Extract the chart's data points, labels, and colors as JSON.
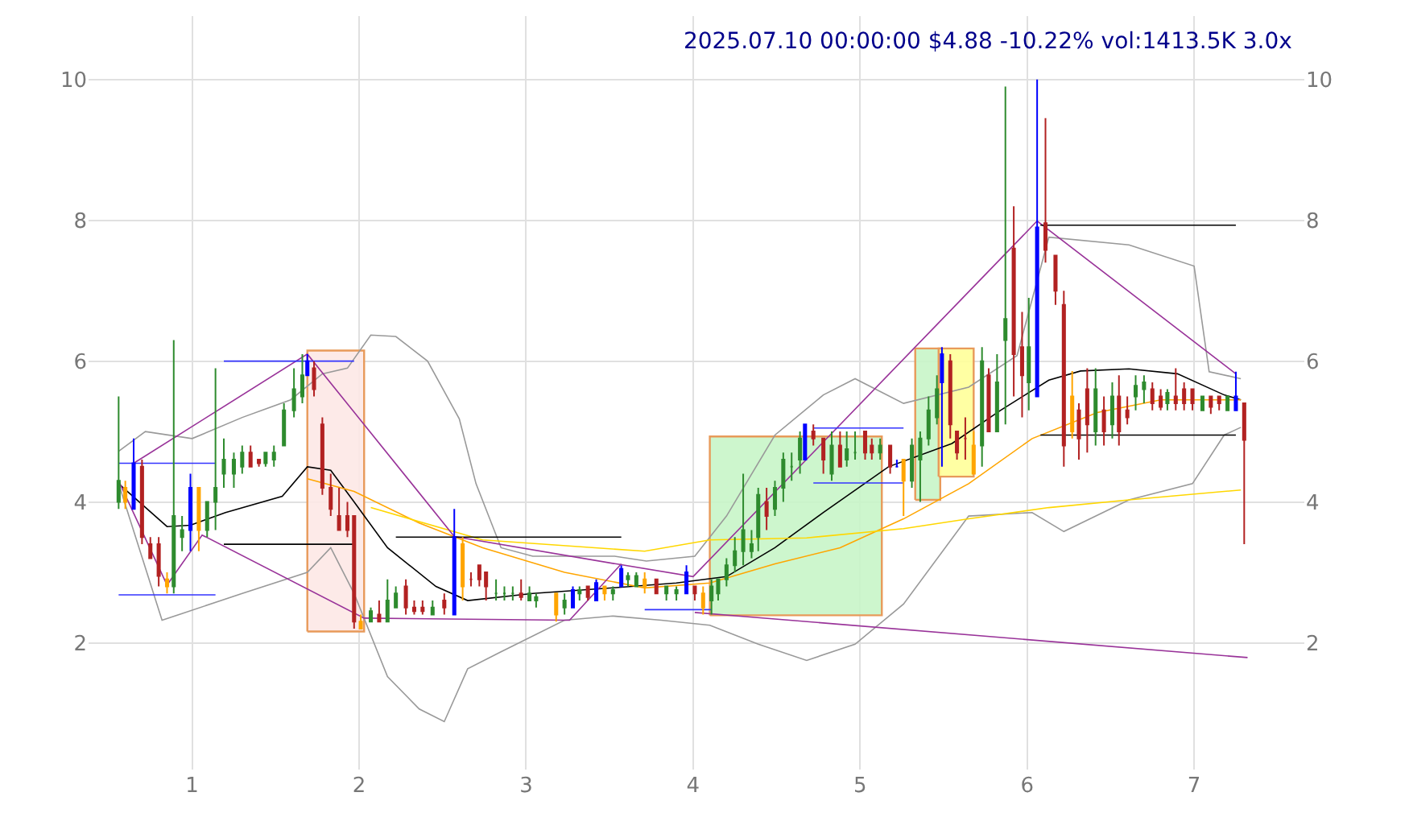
{
  "chart_data": {
    "type": "candlestick",
    "title": "2025.07.10 00:00:00 $4.88 -10.22% vol:1413.5K 3.0x",
    "xlim": [
      0.38,
      7.66
    ],
    "xticks": [
      1,
      2,
      3,
      4,
      5,
      6,
      7
    ],
    "ylim": [
      0.2,
      10.9
    ],
    "yticks": [
      2,
      4,
      6,
      8,
      10
    ],
    "y2lim": [
      0.2,
      10.9
    ],
    "y2ticks": [
      2,
      4,
      6,
      8,
      10
    ],
    "grid": true,
    "series": [
      {
        "type": "area",
        "color": "#fde8e6",
        "x": [
          1.69,
          2.03,
          2.03,
          1.69,
          1.69
        ],
        "values": [
          2.16,
          2.16,
          6.15,
          6.15,
          2.16
        ]
      },
      {
        "type": "area",
        "color": "#c8f5c8",
        "x": [
          4.1,
          5.13,
          5.13,
          4.1,
          4.1
        ],
        "values": [
          2.39,
          2.39,
          4.93,
          4.93,
          2.39
        ]
      },
      {
        "type": "area",
        "color": "#c8f5c8",
        "x": [
          5.33,
          5.48,
          5.48,
          5.33,
          5.33
        ],
        "values": [
          4.03,
          4.03,
          6.18,
          6.18,
          4.03
        ]
      },
      {
        "type": "area",
        "color": "#ffff99",
        "x": [
          5.47,
          5.68,
          5.68,
          5.47,
          5.47
        ],
        "values": [
          4.36,
          4.36,
          6.18,
          6.18,
          4.36
        ]
      },
      {
        "type": "line",
        "color": "#999999",
        "x": [
          0.56,
          0.72,
          1.0,
          1.3,
          1.59,
          1.78,
          1.93,
          2.07,
          2.22,
          2.41,
          2.6,
          2.7,
          2.85,
          3.04,
          3.53,
          3.72,
          4.01,
          4.2,
          4.49,
          4.78,
          4.97,
          5.26,
          5.65,
          5.94,
          6.13,
          6.61,
          7.0,
          7.09,
          7.28
        ],
        "values": [
          4.72,
          5.0,
          4.9,
          5.2,
          5.45,
          5.82,
          5.9,
          6.37,
          6.35,
          6.0,
          5.18,
          4.26,
          3.35,
          3.23,
          3.23,
          3.16,
          3.23,
          3.8,
          4.95,
          5.52,
          5.75,
          5.4,
          5.63,
          6.08,
          7.76,
          7.65,
          7.35,
          5.85,
          5.75
        ]
      },
      {
        "type": "line",
        "color": "#999999",
        "x": [
          0.56,
          0.82,
          1.3,
          1.69,
          1.83,
          1.97,
          2.17,
          2.36,
          2.51,
          2.65,
          2.84,
          3.23,
          3.52,
          3.81,
          4.1,
          4.39,
          4.68,
          4.97,
          5.26,
          5.65,
          6.03,
          6.22,
          6.61,
          6.99,
          7.18,
          7.28
        ],
        "values": [
          4.26,
          2.32,
          2.7,
          3.0,
          3.35,
          2.7,
          1.52,
          1.06,
          0.88,
          1.63,
          1.86,
          2.32,
          2.38,
          2.32,
          2.25,
          1.98,
          1.75,
          1.98,
          2.55,
          3.8,
          3.85,
          3.58,
          4.03,
          4.26,
          4.95,
          5.06
        ]
      },
      {
        "type": "line",
        "color": "#000000",
        "x": [
          0.56,
          0.85,
          0.99,
          1.2,
          1.54,
          1.69,
          1.83,
          1.97,
          2.17,
          2.46,
          2.65,
          3.04,
          3.52,
          3.9,
          4.2,
          4.49,
          4.78,
          5.17,
          5.55,
          5.84,
          6.13,
          6.32,
          6.61,
          6.9,
          7.18,
          7.28
        ],
        "values": [
          4.26,
          3.65,
          3.67,
          3.85,
          4.08,
          4.5,
          4.45,
          4.0,
          3.35,
          2.8,
          2.6,
          2.7,
          2.78,
          2.85,
          2.94,
          3.35,
          3.85,
          4.5,
          4.83,
          5.3,
          5.73,
          5.86,
          5.89,
          5.82,
          5.52,
          5.45
        ]
      },
      {
        "type": "line",
        "color": "#ffa500",
        "x": [
          1.69,
          1.97,
          2.36,
          2.74,
          3.23,
          3.71,
          4.1,
          4.49,
          4.88,
          5.26,
          5.65,
          6.03,
          6.42,
          6.8,
          7.28
        ],
        "values": [
          4.33,
          4.15,
          3.7,
          3.35,
          3.0,
          2.78,
          2.85,
          3.12,
          3.35,
          3.76,
          4.26,
          4.9,
          5.27,
          5.45,
          5.45
        ]
      },
      {
        "type": "line",
        "color": "#ffd700",
        "x": [
          2.07,
          2.74,
          3.71,
          4.1,
          4.68,
          5.26,
          5.65,
          6.13,
          6.61,
          7.28
        ],
        "values": [
          3.92,
          3.46,
          3.3,
          3.46,
          3.49,
          3.62,
          3.76,
          3.92,
          4.03,
          4.17
        ]
      },
      {
        "type": "line",
        "color": "#993399",
        "x": [
          0.65,
          1.69,
          2.57,
          3.54,
          4.0,
          6.06,
          7.25
        ],
        "values": [
          4.55,
          6.1,
          3.51,
          3.12,
          2.94,
          7.99,
          5.82
        ]
      },
      {
        "type": "line",
        "color": "#993399",
        "x": [
          0.56,
          0.85,
          1.06,
          2.03,
          3.26,
          3.57
        ],
        "values": [
          4.3,
          2.82,
          3.53,
          2.35,
          2.32,
          3.12
        ]
      },
      {
        "type": "line",
        "color": "#993399",
        "x": [
          4.01,
          7.32
        ],
        "values": [
          2.43,
          1.79
        ]
      },
      {
        "type": "line",
        "color": "#3333ff",
        "x": [
          0.56,
          1.14
        ],
        "values": [
          4.55,
          4.55
        ]
      },
      {
        "type": "line",
        "color": "#3333ff",
        "x": [
          0.56,
          1.14
        ],
        "values": [
          2.68,
          2.68
        ]
      },
      {
        "type": "line",
        "color": "#3333ff",
        "x": [
          1.19,
          1.97
        ],
        "values": [
          6.0,
          6.0
        ]
      },
      {
        "type": "line",
        "color": "#3333ff",
        "x": [
          3.71,
          4.11
        ],
        "values": [
          2.47,
          2.47
        ]
      },
      {
        "type": "line",
        "color": "#3333ff",
        "x": [
          4.72,
          5.26
        ],
        "values": [
          5.05,
          5.05
        ]
      },
      {
        "type": "line",
        "color": "#3333ff",
        "x": [
          4.72,
          5.26
        ],
        "values": [
          4.27,
          4.27
        ]
      },
      {
        "type": "line",
        "color": "#000000",
        "x": [
          1.19,
          1.97
        ],
        "values": [
          3.4,
          3.4
        ]
      },
      {
        "type": "line",
        "color": "#000000",
        "x": [
          2.22,
          3.57
        ],
        "values": [
          3.5,
          3.5
        ]
      },
      {
        "type": "line",
        "color": "#000000",
        "x": [
          6.08,
          7.25
        ],
        "values": [
          7.93,
          7.93
        ]
      },
      {
        "type": "line",
        "color": "#000000",
        "x": [
          6.08,
          7.25
        ],
        "values": [
          4.95,
          4.95
        ]
      }
    ],
    "colors": [
      "#2e8b2e",
      "#ffa500",
      "#0000ff",
      "#b22222",
      "#b22222",
      "#b22222",
      "#ffa500",
      "#2e8b2e",
      "#2e8b2e",
      "#0000ff",
      "#ffa500",
      "#2e8b2e",
      "#2e8b2e",
      "#2e8b2e",
      "#2e8b2e",
      "#2e8b2e",
      "#b22222",
      "#b22222",
      "#2e8b2e",
      "#2e8b2e",
      "#2e8b2e",
      "#2e8b2e",
      "#2e8b2e",
      "#0000ff",
      "#b22222",
      "#b22222",
      "#b22222",
      "#b22222",
      "#b22222",
      "#b22222",
      "#ffa500",
      "#2e8b2e",
      "#b22222",
      "#2e8b2e",
      "#2e8b2e",
      "#b22222",
      "#b22222",
      "#b22222",
      "#2e8b2e",
      "#b22222",
      "#0000ff",
      "#ffa500",
      "#b22222",
      "#b22222",
      "#b22222",
      "#2e8b2e",
      "#2e8b2e",
      "#2e8b2e",
      "#b22222",
      "#2e8b2e",
      "#2e8b2e",
      "#ffa500",
      "#2e8b2e",
      "#0000ff",
      "#2e8b2e",
      "#b22222",
      "#0000ff",
      "#ffa500",
      "#2e8b2e",
      "#0000ff",
      "#2e8b2e",
      "#2e8b2e",
      "#ffa500",
      "#b22222",
      "#2e8b2e",
      "#2e8b2e",
      "#0000ff",
      "#b22222",
      "#ffa500",
      "#2e8b2e",
      "#2e8b2e",
      "#2e8b2e",
      "#2e8b2e",
      "#2e8b2e",
      "#2e8b2e",
      "#2e8b2e",
      "#b22222",
      "#2e8b2e",
      "#2e8b2e",
      "#2e8b2e",
      "#2e8b2e",
      "#0000ff",
      "#b22222",
      "#b22222",
      "#2e8b2e",
      "#b22222",
      "#2e8b2e",
      "#2e8b2e",
      "#b22222",
      "#b22222",
      "#2e8b2e",
      "#b22222",
      "#0000ff",
      "#ffa500",
      "#2e8b2e",
      "#2e8b2e",
      "#2e8b2e",
      "#2e8b2e",
      "#0000ff",
      "#b22222",
      "#b22222",
      "#b22222",
      "#ffa500",
      "#2e8b2e",
      "#b22222",
      "#2e8b2e",
      "#2e8b2e",
      "#b22222",
      "#b22222",
      "#2e8b2e",
      "#0000ff",
      "#b22222",
      "#b22222",
      "#b22222",
      "#ffa500",
      "#b22222",
      "#b22222",
      "#2e8b2e",
      "#b22222",
      "#2e8b2e",
      "#b22222",
      "#b22222",
      "#2e8b2e",
      "#2e8b2e",
      "#b22222",
      "#b22222",
      "#2e8b2e",
      "#b22222",
      "#b22222",
      "#b22222",
      "#2e8b2e",
      "#b22222",
      "#b22222",
      "#2e8b2e",
      "#0000ff",
      "#b22222"
    ],
    "x": [
      0.56,
      0.6,
      0.65,
      0.7,
      0.75,
      0.8,
      0.85,
      0.89,
      0.94,
      0.99,
      1.04,
      1.09,
      1.14,
      1.19,
      1.25,
      1.3,
      1.35,
      1.4,
      1.44,
      1.49,
      1.55,
      1.61,
      1.66,
      1.69,
      1.73,
      1.78,
      1.83,
      1.88,
      1.93,
      1.97,
      2.01,
      2.07,
      2.12,
      2.17,
      2.22,
      2.28,
      2.33,
      2.38,
      2.44,
      2.51,
      2.57,
      2.62,
      2.67,
      2.72,
      2.76,
      2.82,
      2.87,
      2.92,
      2.97,
      3.02,
      3.06,
      3.18,
      3.23,
      3.28,
      3.32,
      3.37,
      3.42,
      3.47,
      3.52,
      3.57,
      3.61,
      3.66,
      3.71,
      3.78,
      3.84,
      3.9,
      3.96,
      4.01,
      4.06,
      4.11,
      4.15,
      4.2,
      4.25,
      4.3,
      4.35,
      4.39,
      4.44,
      4.49,
      4.54,
      4.59,
      4.64,
      4.67,
      4.72,
      4.78,
      4.83,
      4.88,
      4.92,
      4.97,
      5.03,
      5.07,
      5.12,
      5.18,
      5.22,
      5.26,
      5.31,
      5.36,
      5.41,
      5.46,
      5.49,
      5.54,
      5.58,
      5.63,
      5.68,
      5.73,
      5.77,
      5.82,
      5.87,
      5.92,
      5.97,
      6.01,
      6.06,
      6.11,
      6.17,
      6.22,
      6.27,
      6.31,
      6.36,
      6.41,
      6.46,
      6.51,
      6.55,
      6.6,
      6.65,
      6.7,
      6.75,
      6.8,
      6.84,
      6.89,
      6.94,
      6.99,
      7.05,
      7.1,
      7.15,
      7.2,
      7.25,
      7.3
    ],
    "ohlc": [
      [
        4.0,
        5.5,
        3.9,
        4.3
      ],
      [
        4.2,
        4.3,
        3.9,
        4.0
      ],
      [
        3.9,
        4.9,
        3.9,
        4.55
      ],
      [
        4.5,
        4.6,
        3.4,
        3.5
      ],
      [
        3.4,
        3.5,
        3.2,
        3.2
      ],
      [
        3.4,
        3.5,
        2.8,
        2.95
      ],
      [
        2.9,
        3.0,
        2.7,
        2.8
      ],
      [
        2.8,
        6.3,
        2.7,
        3.8
      ],
      [
        3.5,
        3.8,
        3.3,
        3.6
      ],
      [
        3.6,
        4.4,
        3.3,
        4.2
      ],
      [
        4.2,
        4.2,
        3.3,
        3.6
      ],
      [
        3.6,
        4.0,
        3.5,
        4.0
      ],
      [
        4.0,
        5.9,
        3.6,
        4.2
      ],
      [
        4.4,
        4.9,
        4.2,
        4.6
      ],
      [
        4.4,
        4.7,
        4.2,
        4.6
      ],
      [
        4.5,
        4.8,
        4.4,
        4.7
      ],
      [
        4.7,
        4.8,
        4.5,
        4.5
      ],
      [
        4.6,
        4.6,
        4.5,
        4.55
      ],
      [
        4.55,
        4.7,
        4.5,
        4.7
      ],
      [
        4.6,
        4.8,
        4.5,
        4.7
      ],
      [
        4.8,
        5.4,
        4.8,
        5.3
      ],
      [
        5.3,
        5.9,
        5.2,
        5.6
      ],
      [
        5.5,
        6.1,
        5.4,
        5.8
      ],
      [
        5.8,
        6.1,
        5.8,
        6.0
      ],
      [
        5.9,
        6.0,
        5.5,
        5.6
      ],
      [
        5.1,
        5.2,
        4.1,
        4.2
      ],
      [
        4.2,
        4.4,
        3.8,
        3.9
      ],
      [
        3.8,
        4.2,
        3.6,
        3.6
      ],
      [
        3.8,
        4.0,
        3.5,
        3.6
      ],
      [
        3.8,
        3.8,
        2.2,
        2.3
      ],
      [
        2.3,
        2.4,
        2.2,
        2.2
      ],
      [
        2.3,
        2.5,
        2.3,
        2.45
      ],
      [
        2.4,
        2.6,
        2.3,
        2.3
      ],
      [
        2.3,
        2.9,
        2.3,
        2.6
      ],
      [
        2.5,
        2.8,
        2.5,
        2.7
      ],
      [
        2.8,
        2.9,
        2.4,
        2.5
      ],
      [
        2.5,
        2.6,
        2.4,
        2.45
      ],
      [
        2.5,
        2.6,
        2.4,
        2.45
      ],
      [
        2.4,
        2.6,
        2.4,
        2.5
      ],
      [
        2.6,
        2.7,
        2.4,
        2.5
      ],
      [
        2.4,
        3.9,
        2.4,
        3.5
      ],
      [
        3.4,
        3.5,
        2.6,
        2.8
      ],
      [
        2.9,
        3.0,
        2.8,
        2.9
      ],
      [
        3.1,
        3.1,
        2.8,
        2.9
      ],
      [
        3.0,
        3.0,
        2.6,
        2.8
      ],
      [
        2.7,
        2.9,
        2.6,
        2.7
      ],
      [
        2.7,
        2.8,
        2.6,
        2.7
      ],
      [
        2.7,
        2.8,
        2.6,
        2.7
      ],
      [
        2.7,
        2.9,
        2.6,
        2.65
      ],
      [
        2.6,
        2.8,
        2.6,
        2.7
      ],
      [
        2.6,
        2.7,
        2.5,
        2.65
      ],
      [
        2.7,
        2.7,
        2.3,
        2.4
      ],
      [
        2.5,
        2.7,
        2.4,
        2.6
      ],
      [
        2.5,
        2.8,
        2.5,
        2.75
      ],
      [
        2.7,
        2.8,
        2.6,
        2.75
      ],
      [
        2.8,
        2.8,
        2.6,
        2.65
      ],
      [
        2.6,
        2.9,
        2.6,
        2.85
      ],
      [
        2.8,
        2.8,
        2.6,
        2.7
      ],
      [
        2.7,
        2.8,
        2.6,
        2.75
      ],
      [
        2.8,
        3.1,
        2.8,
        3.05
      ],
      [
        2.9,
        3.0,
        2.8,
        2.95
      ],
      [
        2.8,
        3.0,
        2.8,
        2.95
      ],
      [
        2.9,
        3.0,
        2.7,
        2.8
      ],
      [
        2.9,
        2.9,
        2.7,
        2.7
      ],
      [
        2.7,
        2.8,
        2.6,
        2.8
      ],
      [
        2.7,
        2.8,
        2.6,
        2.75
      ],
      [
        2.7,
        3.1,
        2.7,
        3.0
      ],
      [
        2.8,
        2.8,
        2.6,
        2.7
      ],
      [
        2.7,
        2.8,
        2.4,
        2.5
      ],
      [
        2.6,
        2.9,
        2.4,
        2.8
      ],
      [
        2.7,
        2.9,
        2.6,
        2.9
      ],
      [
        2.9,
        3.2,
        2.8,
        3.1
      ],
      [
        3.1,
        3.5,
        3.0,
        3.3
      ],
      [
        3.3,
        4.4,
        3.1,
        3.6
      ],
      [
        3.3,
        3.6,
        3.2,
        3.4
      ],
      [
        3.5,
        4.2,
        3.3,
        4.1
      ],
      [
        4.0,
        4.2,
        3.6,
        3.8
      ],
      [
        3.9,
        4.3,
        3.8,
        4.2
      ],
      [
        4.2,
        4.7,
        4.0,
        4.6
      ],
      [
        4.5,
        4.7,
        4.3,
        4.5
      ],
      [
        4.6,
        5.0,
        4.4,
        4.9
      ],
      [
        4.6,
        5.1,
        4.6,
        5.1
      ],
      [
        5.0,
        5.1,
        4.8,
        4.9
      ],
      [
        4.9,
        4.9,
        4.4,
        4.6
      ],
      [
        4.4,
        5.0,
        4.3,
        4.8
      ],
      [
        4.8,
        5.0,
        4.5,
        4.5
      ],
      [
        4.6,
        5.0,
        4.5,
        4.75
      ],
      [
        4.7,
        5.0,
        4.6,
        4.7
      ],
      [
        5.0,
        5.0,
        4.6,
        4.7
      ],
      [
        4.8,
        4.9,
        4.6,
        4.7
      ],
      [
        4.7,
        4.9,
        4.6,
        4.8
      ],
      [
        4.8,
        4.8,
        4.4,
        4.5
      ],
      [
        4.5,
        4.6,
        4.5,
        4.5
      ],
      [
        4.6,
        4.6,
        3.8,
        4.3
      ],
      [
        4.3,
        4.9,
        4.2,
        4.8
      ],
      [
        4.6,
        5.0,
        4.0,
        4.9
      ],
      [
        4.9,
        5.5,
        4.8,
        5.3
      ],
      [
        5.2,
        5.8,
        5.1,
        5.6
      ],
      [
        5.7,
        6.2,
        4.5,
        6.1
      ],
      [
        6.0,
        6.1,
        4.9,
        5.1
      ],
      [
        5.0,
        5.0,
        4.6,
        4.7
      ],
      [
        4.9,
        5.2,
        4.6,
        4.9
      ],
      [
        4.8,
        5.0,
        4.4,
        4.4
      ],
      [
        4.8,
        6.2,
        4.5,
        6.0
      ],
      [
        5.8,
        5.9,
        5.0,
        5.0
      ],
      [
        5.0,
        6.1,
        5.0,
        5.7
      ],
      [
        6.3,
        9.9,
        5.1,
        6.6
      ],
      [
        7.6,
        8.2,
        5.5,
        6.1
      ],
      [
        6.2,
        6.7,
        5.2,
        5.8
      ],
      [
        5.7,
        6.9,
        5.3,
        6.2
      ],
      [
        5.5,
        10.0,
        5.5,
        7.9
      ],
      [
        7.96,
        9.45,
        7.4,
        7.58
      ],
      [
        7.5,
        7.5,
        6.8,
        7.0
      ],
      [
        6.8,
        7.0,
        4.5,
        4.8
      ],
      [
        5.5,
        5.86,
        4.9,
        5.0
      ],
      [
        5.3,
        5.4,
        4.6,
        4.9
      ],
      [
        5.6,
        5.9,
        4.7,
        5.1
      ],
      [
        5.0,
        5.9,
        4.8,
        5.6
      ],
      [
        5.3,
        5.5,
        4.8,
        5.0
      ],
      [
        5.1,
        5.7,
        4.9,
        5.5
      ],
      [
        5.5,
        5.8,
        4.8,
        5.0
      ],
      [
        5.3,
        5.5,
        5.1,
        5.2
      ],
      [
        5.5,
        5.8,
        5.3,
        5.65
      ],
      [
        5.6,
        5.8,
        5.4,
        5.7
      ],
      [
        5.6,
        5.7,
        5.3,
        5.4
      ],
      [
        5.5,
        5.6,
        5.3,
        5.35
      ],
      [
        5.4,
        5.6,
        5.3,
        5.55
      ],
      [
        5.5,
        5.9,
        5.3,
        5.4
      ],
      [
        5.6,
        5.7,
        5.3,
        5.4
      ],
      [
        5.6,
        5.6,
        5.3,
        5.4
      ],
      [
        5.3,
        5.5,
        5.3,
        5.5
      ],
      [
        5.5,
        5.5,
        5.25,
        5.35
      ],
      [
        5.5,
        5.5,
        5.3,
        5.4
      ],
      [
        5.3,
        5.5,
        5.3,
        5.5
      ],
      [
        5.3,
        5.85,
        5.3,
        5.5
      ],
      [
        5.4,
        5.4,
        3.4,
        4.88
      ]
    ]
  }
}
